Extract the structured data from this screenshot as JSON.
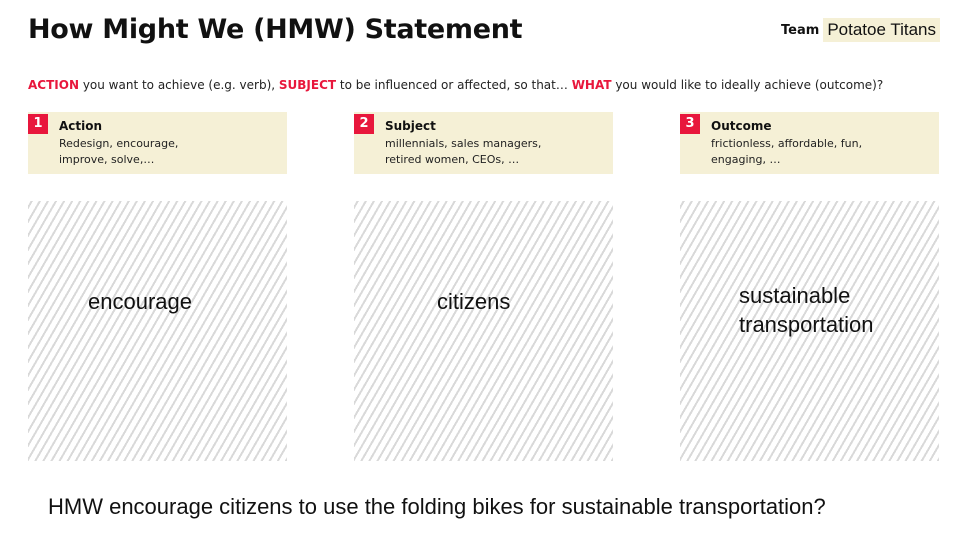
{
  "title": "How Might We (HMW) Statement",
  "team": {
    "label": "Team",
    "name": "Potatoe Titans"
  },
  "prompt": {
    "action_kw": "ACTION",
    "part1": " you want to achieve (e.g. verb), ",
    "subject_kw": "SUBJECT",
    "part2": " to be influenced or affected, so that… ",
    "what_kw": "WHAT",
    "part3": " you would like to ideally achieve (outcome)?"
  },
  "columns": [
    {
      "number": "1",
      "title": "Action",
      "desc_line1": "Redesign, encourage,",
      "desc_line2": "improve, solve,…",
      "answer_line1": "encourage",
      "answer_line2": ""
    },
    {
      "number": "2",
      "title": "Subject",
      "desc_line1": "millennials, sales managers,",
      "desc_line2": "retired women, CEOs, …",
      "answer_line1": "citizens",
      "answer_line2": ""
    },
    {
      "number": "3",
      "title": "Outcome",
      "desc_line1": "frictionless, affordable, fun,",
      "desc_line2": "engaging, …",
      "answer_line1": "sustainable",
      "answer_line2": "transportation"
    }
  ],
  "statement": "HMW encourage citizens to use the folding bikes for sustainable transportation?",
  "colors": {
    "accent": "#e8173c",
    "card_bg": "#f5f0d6",
    "hatch": "#d9d9d9"
  }
}
